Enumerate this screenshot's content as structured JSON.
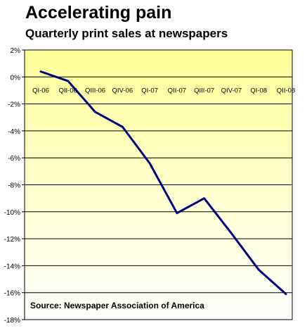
{
  "title": "Accelerating pain",
  "subtitle": "Quarterly print sales at newspapers",
  "source": "Source: Newspaper Association of America",
  "chart_data": {
    "type": "line",
    "categories": [
      "QI-06",
      "QII-06",
      "QIII-06",
      "QIV-06",
      "QI-07",
      "QII-07",
      "QIII-07",
      "QIV-07",
      "QI-08",
      "QII-08"
    ],
    "series": [
      {
        "values": [
          0.4,
          -0.3,
          -2.6,
          -3.7,
          -6.4,
          -10.1,
          -9.0,
          -11.6,
          -14.3,
          -16.1
        ]
      }
    ],
    "ylim": [
      -18,
      2
    ],
    "yticks": [
      2,
      0,
      -2,
      -4,
      -6,
      -8,
      -10,
      -12,
      -14,
      -16,
      -18
    ],
    "ytick_labels": [
      "2%",
      "0%",
      "-2%",
      "-4%",
      "-6%",
      "-8%",
      "-10%",
      "-12%",
      "-14%",
      "-16%",
      "-18%"
    ],
    "grid": true,
    "colors": {
      "line": "#00007f",
      "background_top": "#ffff99",
      "background_bottom": "#ffffff",
      "grid": "#000000"
    }
  }
}
